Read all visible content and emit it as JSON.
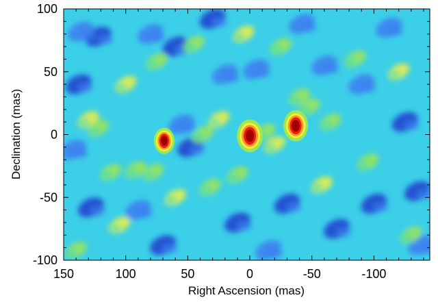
{
  "chart_data": {
    "type": "heatmap",
    "xlabel": "Right Ascension (mas)",
    "ylabel": "Declination (mas)",
    "xlim": [
      150,
      -145
    ],
    "ylim": [
      -100,
      100
    ],
    "x_ticks": [
      150,
      100,
      50,
      0,
      -50,
      -100
    ],
    "x_tick_labels": [
      "150",
      "100",
      "50",
      "0",
      "-50",
      "-100"
    ],
    "y_ticks": [
      100,
      50,
      0,
      -50,
      -100
    ],
    "y_tick_labels": [
      "100",
      "50",
      "0",
      "-50",
      "-100"
    ],
    "x_minor_step": 10,
    "y_minor_step": 10,
    "colormap": [
      "#1c3ccc",
      "#3c7cf0",
      "#32c8e6",
      "#3cdcb4",
      "#a0e650",
      "#f0f03c",
      "#fa9628",
      "#e61e14",
      "#a00000"
    ],
    "background_color": "#3ccfe8",
    "sources": [
      {
        "x": 0,
        "y": -1,
        "peak": 1.0
      },
      {
        "x": -37,
        "y": 7,
        "peak": 0.95
      },
      {
        "x": 69,
        "y": -5,
        "peak": 0.8
      }
    ],
    "bright_patches": [
      {
        "x": 130,
        "y": 12
      },
      {
        "x": 122,
        "y": 5
      },
      {
        "x": 112,
        "y": -30
      },
      {
        "x": 105,
        "y": -72
      },
      {
        "x": 92,
        "y": -28
      },
      {
        "x": 78,
        "y": -30
      },
      {
        "x": 60,
        "y": -50
      },
      {
        "x": 38,
        "y": 0
      },
      {
        "x": 32,
        "y": -42
      },
      {
        "x": 25,
        "y": 12
      },
      {
        "x": 10,
        "y": -32
      },
      {
        "x": -12,
        "y": 2
      },
      {
        "x": -20,
        "y": -8
      },
      {
        "x": -40,
        "y": 30
      },
      {
        "x": -48,
        "y": 22
      },
      {
        "x": -58,
        "y": -40
      },
      {
        "x": -85,
        "y": 60
      },
      {
        "x": -95,
        "y": -22
      },
      {
        "x": -120,
        "y": 50
      },
      {
        "x": -130,
        "y": -80
      },
      {
        "x": 140,
        "y": -92
      },
      {
        "x": 100,
        "y": 40
      },
      {
        "x": 75,
        "y": 58
      },
      {
        "x": 45,
        "y": 72
      },
      {
        "x": 5,
        "y": 80
      },
      {
        "x": -25,
        "y": 70
      },
      {
        "x": -65,
        "y": 10
      }
    ],
    "dark_patches": [
      {
        "x": 122,
        "y": 78
      },
      {
        "x": 136,
        "y": 82
      },
      {
        "x": 138,
        "y": 40
      },
      {
        "x": 80,
        "y": 80
      },
      {
        "x": 60,
        "y": 70
      },
      {
        "x": 55,
        "y": 8
      },
      {
        "x": 48,
        "y": -10
      },
      {
        "x": 142,
        "y": -12
      },
      {
        "x": 128,
        "y": -58
      },
      {
        "x": 90,
        "y": -60
      },
      {
        "x": 70,
        "y": -88
      },
      {
        "x": 20,
        "y": 48
      },
      {
        "x": 10,
        "y": -70
      },
      {
        "x": -5,
        "y": 52
      },
      {
        "x": -30,
        "y": -55
      },
      {
        "x": -60,
        "y": 55
      },
      {
        "x": -70,
        "y": -75
      },
      {
        "x": -90,
        "y": 40
      },
      {
        "x": -100,
        "y": -55
      },
      {
        "x": -112,
        "y": 85
      },
      {
        "x": -125,
        "y": 10
      },
      {
        "x": -138,
        "y": -88
      },
      {
        "x": -135,
        "y": -45
      },
      {
        "x": -42,
        "y": 88
      },
      {
        "x": 30,
        "y": 92
      },
      {
        "x": -15,
        "y": -92
      }
    ],
    "grid": false
  }
}
